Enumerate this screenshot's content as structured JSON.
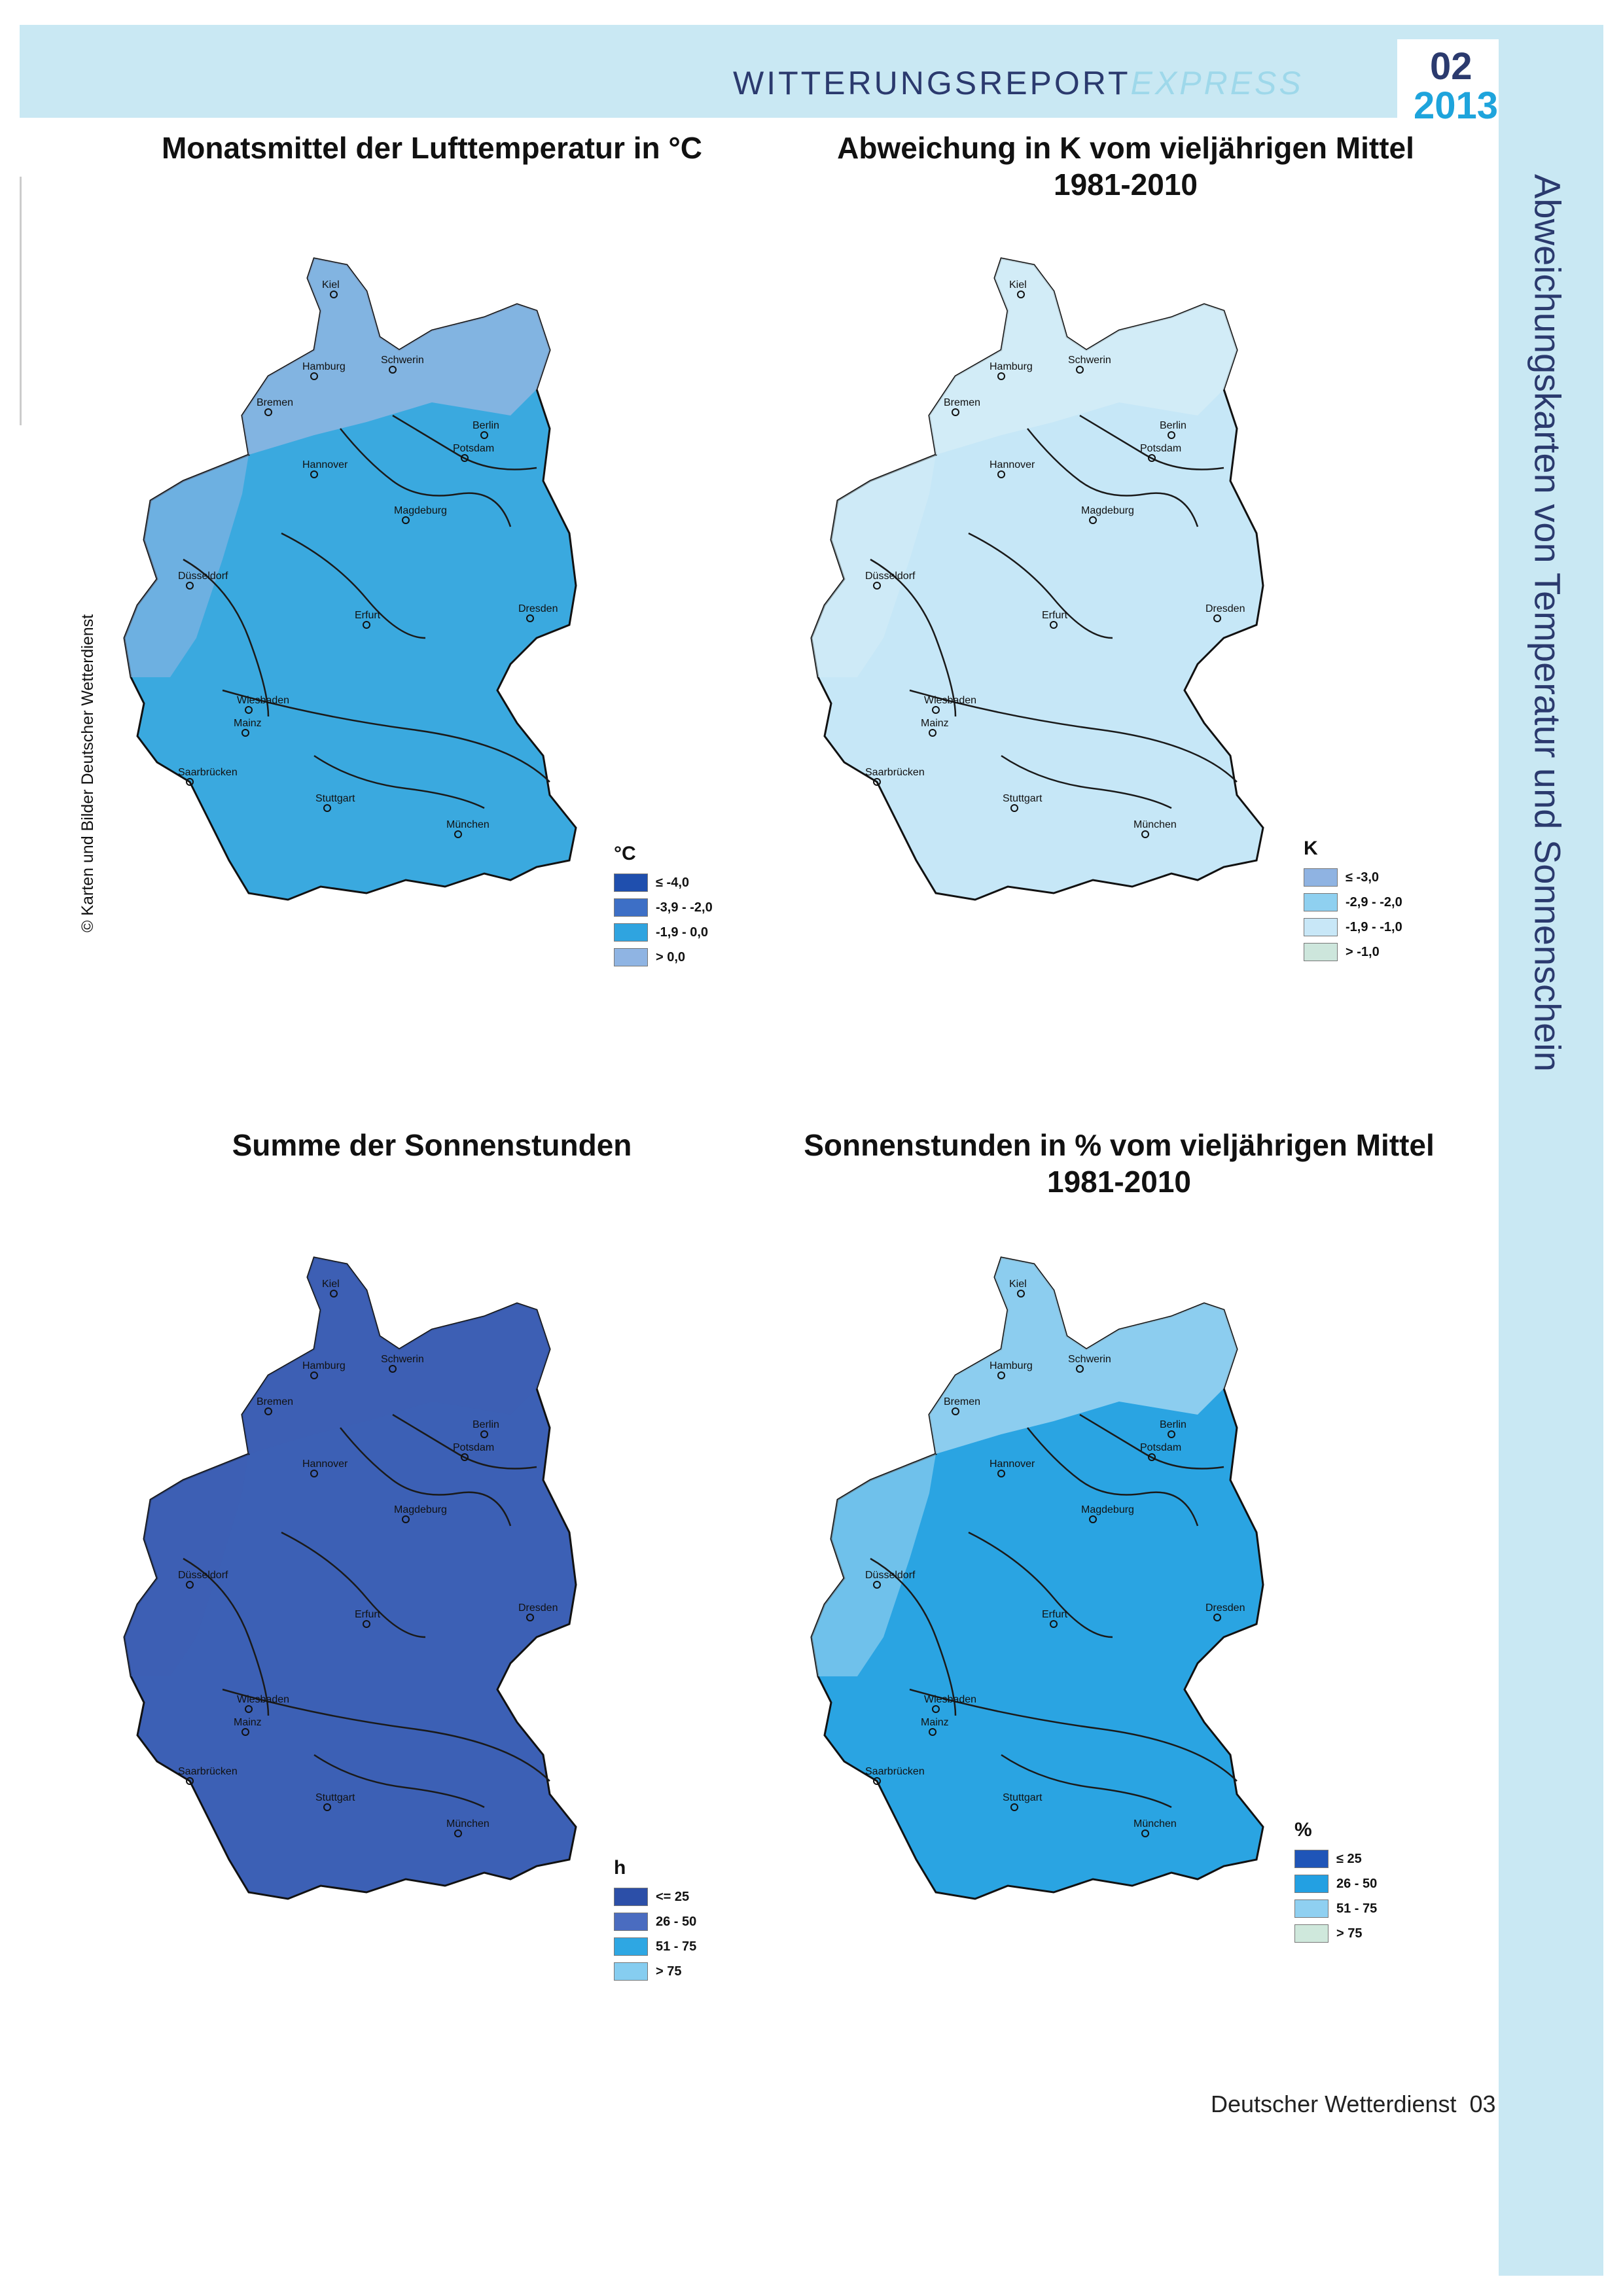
{
  "header": {
    "title_main": "WITTERUNGSREPORT",
    "title_suffix": "EXPRESS",
    "issue_number": "02",
    "issue_year": "2013"
  },
  "side_title": "Abweichungskarten von Temperatur und Sonnenschein",
  "copyright": "© Karten und Bilder Deutscher Wetterdienst",
  "footer": {
    "publisher": "Deutscher Wetterdienst",
    "page": "03"
  },
  "cities": [
    "Kiel",
    "Hamburg",
    "Schwerin",
    "Bremen",
    "Berlin",
    "Potsdam",
    "Hannover",
    "Magdeburg",
    "Düsseldorf",
    "Dresden",
    "Erfurt",
    "Wiesbaden",
    "Mainz",
    "Saarbrücken",
    "Stuttgart",
    "München"
  ],
  "maps": [
    {
      "id": "temperature",
      "title_lines": [
        "Monatsmittel der Lufttemperatur in °C"
      ],
      "base_color": "#3aa9df",
      "north_color": "#8fb6e2",
      "legend": {
        "unit": "°C",
        "items": [
          {
            "label": "≤ -4,0",
            "color": "#1f4fae"
          },
          {
            "label": "-3,9 - -2,0",
            "color": "#3d6fc6"
          },
          {
            "label": "-1,9 - 0,0",
            "color": "#2fa4e0"
          },
          {
            "label": "> 0,0",
            "color": "#8fb4e3"
          }
        ]
      }
    },
    {
      "id": "temperature-anomaly",
      "title_lines": [
        "Abweichung in K vom vieljährigen Mittel",
        "1981-2010"
      ],
      "base_color": "#c6e7f7",
      "north_color": "#d3ecf7",
      "legend": {
        "unit": "K",
        "items": [
          {
            "label": "≤ -3,0",
            "color": "#8fb3e2"
          },
          {
            "label": "-2,9 - -2,0",
            "color": "#8fd0f0"
          },
          {
            "label": "-1,9 - -1,0",
            "color": "#c8e7f7"
          },
          {
            "label": "> -1,0",
            "color": "#cde6dc"
          }
        ]
      }
    },
    {
      "id": "sunshine",
      "title_lines": [
        "Summe der Sonnenstunden"
      ],
      "base_color": "#3c60b5",
      "north_color": "#3d5fb4",
      "legend": {
        "unit": "h",
        "items": [
          {
            "label": "<= 25",
            "color": "#2c4fa8"
          },
          {
            "label": "26 - 50",
            "color": "#4a6cc0"
          },
          {
            "label": "51 - 75",
            "color": "#2ea7e3"
          },
          {
            "label": "> 75",
            "color": "#86cdf0"
          }
        ]
      }
    },
    {
      "id": "sunshine-percent",
      "title_lines": [
        "Sonnenstunden in % vom vieljährigen Mittel",
        "1981-2010"
      ],
      "base_color": "#2aa4e2",
      "north_color": "#9ed5f1",
      "legend": {
        "unit": "%",
        "items": [
          {
            "label": "≤ 25",
            "color": "#1f55b8"
          },
          {
            "label": "26 - 50",
            "color": "#23a0e2"
          },
          {
            "label": "51 - 75",
            "color": "#8fd0f1"
          },
          {
            "label": "> 75",
            "color": "#cfe8dc"
          }
        ]
      }
    }
  ]
}
